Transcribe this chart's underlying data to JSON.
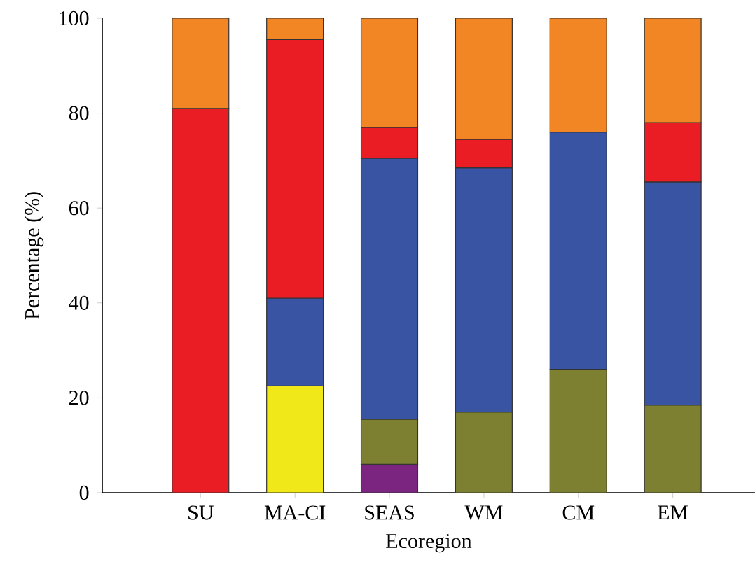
{
  "chart_data": {
    "type": "bar",
    "stacked": true,
    "xlabel": "Ecoregion",
    "ylabel": "Percentage (%)",
    "categories": [
      "SU",
      "MA-CI",
      "SEAS",
      "WM",
      "CM",
      "EM"
    ],
    "ylim": [
      0,
      100
    ],
    "yticks": [
      0,
      20,
      40,
      60,
      80,
      100
    ],
    "series": [
      {
        "color": "#7b2580",
        "values": [
          null,
          null,
          6,
          null,
          null,
          null
        ]
      },
      {
        "color": "#7d8030",
        "values": [
          null,
          null,
          9.5,
          17,
          26,
          18.5
        ]
      },
      {
        "color": "#f0e818",
        "values": [
          null,
          22.5,
          null,
          null,
          null,
          null
        ]
      },
      {
        "color": "#3a54a4",
        "values": [
          null,
          18.5,
          55,
          51.5,
          50,
          47
        ]
      },
      {
        "color": "#ea1c24",
        "values": [
          81,
          54.5,
          6.5,
          6,
          null,
          12.5
        ]
      },
      {
        "color": "#f28624",
        "values": [
          19,
          4.5,
          23,
          25.5,
          24,
          22
        ]
      }
    ]
  }
}
